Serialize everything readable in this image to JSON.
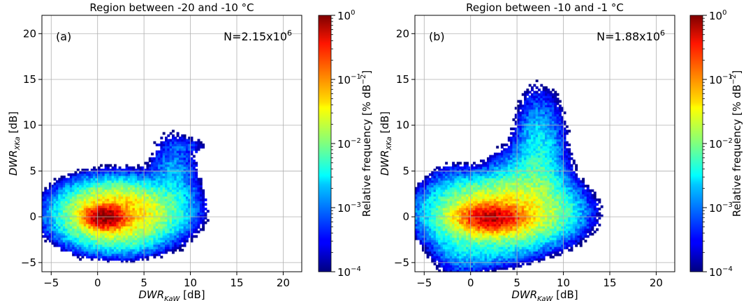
{
  "chart_data": [
    {
      "type": "heatmap",
      "title": "Region between -20 and -10 °C",
      "panel_label": "(a)",
      "count_text": {
        "base": "N=2.15x10",
        "exp": "6"
      },
      "xlabel": {
        "main": "DWR",
        "sub": "KaW",
        "unit": " [dB]"
      },
      "ylabel": {
        "main": "DWR",
        "sub": "XKa",
        "unit": " [dB]"
      },
      "xlim": [
        -6,
        22
      ],
      "ylim": [
        -6,
        22
      ],
      "xticks": [
        -5,
        0,
        5,
        10,
        15,
        20
      ],
      "yticks": [
        -5,
        0,
        5,
        10,
        15,
        20
      ],
      "grid": true,
      "colorbar": {
        "label": "Relative frequency [% dB",
        "label_exp": "−2",
        "label_close": "]",
        "scale": "log",
        "range": [
          0.0001,
          1
        ],
        "ticks": [
          {
            "value": 1,
            "base": "10",
            "exp": "0"
          },
          {
            "value": 0.1,
            "base": "10",
            "exp": "−1"
          },
          {
            "value": 0.01,
            "base": "10",
            "exp": "−2"
          },
          {
            "value": 0.001,
            "base": "10",
            "exp": "−3"
          },
          {
            "value": 0.0001,
            "base": "10",
            "exp": "−4"
          }
        ],
        "colormap": "jet"
      },
      "density_blobs": [
        {
          "x": 1.8,
          "y": 0.2,
          "sx": 2.6,
          "sy": 1.5,
          "logv": -1.2
        },
        {
          "x": 0.7,
          "y": -0.1,
          "sx": 1.0,
          "sy": 0.6,
          "logv": -0.05
        },
        {
          "x": 5.0,
          "y": 0.8,
          "sx": 2.4,
          "sy": 1.3,
          "logv": -2.3
        },
        {
          "x": 8.0,
          "y": 3.0,
          "sx": 1.3,
          "sy": 2.6,
          "logv": -2.7
        },
        {
          "x": 9.5,
          "y": 7.6,
          "sx": 1.2,
          "sy": 0.5,
          "logv": -3.4
        },
        {
          "x": -1.5,
          "y": 0.2,
          "sx": 1.1,
          "sy": 1.6,
          "logv": -2.8
        },
        {
          "x": 3.0,
          "y": -2.8,
          "sx": 1.7,
          "sy": 0.9,
          "logv": -3.1
        }
      ],
      "value_range_logv": [
        -4,
        0
      ]
    },
    {
      "type": "heatmap",
      "title": "Region between -10 and -1 °C",
      "panel_label": "(b)",
      "count_text": {
        "base": "N=1.88x10",
        "exp": "6"
      },
      "xlabel": {
        "main": "DWR",
        "sub": "KaW",
        "unit": " [dB]"
      },
      "ylabel": {
        "main": "DWR",
        "sub": "XKa",
        "unit": " [dB]"
      },
      "xlim": [
        -6,
        22
      ],
      "ylim": [
        -6,
        22
      ],
      "xticks": [
        -5,
        0,
        5,
        10,
        15,
        20
      ],
      "yticks": [
        -5,
        0,
        5,
        10,
        15,
        20
      ],
      "grid": true,
      "colorbar": {
        "label": "Relative frequency [% dB",
        "label_exp": "−2",
        "label_close": "]",
        "scale": "log",
        "range": [
          0.0001,
          1
        ],
        "ticks": [
          {
            "value": 1,
            "base": "10",
            "exp": "0"
          },
          {
            "value": 0.1,
            "base": "10",
            "exp": "−1"
          },
          {
            "value": 0.01,
            "base": "10",
            "exp": "−2"
          },
          {
            "value": 0.001,
            "base": "10",
            "exp": "−3"
          },
          {
            "value": 0.0001,
            "base": "10",
            "exp": "−4"
          }
        ],
        "colormap": "jet"
      },
      "density_blobs": [
        {
          "x": 3.0,
          "y": 0.3,
          "sx": 3.2,
          "sy": 1.6,
          "logv": -1.3
        },
        {
          "x": 2.2,
          "y": -0.2,
          "sx": 1.6,
          "sy": 0.7,
          "logv": -0.3
        },
        {
          "x": 6.0,
          "y": 2.5,
          "sx": 2.0,
          "sy": 2.0,
          "logv": -2.1
        },
        {
          "x": 7.3,
          "y": 6.5,
          "sx": 1.3,
          "sy": 3.2,
          "logv": -2.5
        },
        {
          "x": 8.5,
          "y": 0.5,
          "sx": 1.6,
          "sy": 1.2,
          "logv": -2.6
        },
        {
          "x": -1.0,
          "y": -1.5,
          "sx": 1.6,
          "sy": 2.2,
          "logv": -2.5
        },
        {
          "x": -2.5,
          "y": 3.5,
          "sx": 1.2,
          "sy": 1.2,
          "logv": -3.3
        },
        {
          "x": 2.0,
          "y": -4.0,
          "sx": 2.2,
          "sy": 0.9,
          "logv": -2.9
        }
      ],
      "value_range_logv": [
        -4,
        0
      ]
    }
  ]
}
